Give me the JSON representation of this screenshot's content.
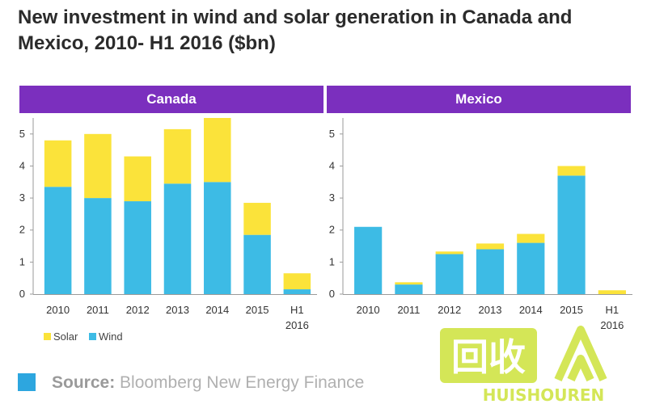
{
  "header": {
    "title": "New investment in wind and solar generation in Canada and Mexico, 2010- H1 2016 ($bn)"
  },
  "colors": {
    "solar": "#fbe33a",
    "wind": "#3dbbe5",
    "banner": "#7b2fbe",
    "source_box": "#2da6df"
  },
  "legend": {
    "solar_label": "Solar",
    "wind_label": "Wind"
  },
  "source": {
    "prefix": "Source:",
    "name": "Bloomberg New Energy Finance"
  },
  "watermark": {
    "text": "HUISHOUREN",
    "glyph": "回收"
  },
  "chart_data": [
    {
      "type": "bar",
      "stacked": true,
      "title": "Canada",
      "categories": [
        "2010",
        "2011",
        "2012",
        "2013",
        "2014",
        "2015",
        "H1 2016"
      ],
      "series": [
        {
          "name": "Wind",
          "values": [
            3.35,
            3.0,
            2.9,
            3.45,
            3.5,
            1.85,
            0.15
          ]
        },
        {
          "name": "Solar",
          "values": [
            1.45,
            2.0,
            1.4,
            1.7,
            2.0,
            1.0,
            0.5
          ]
        }
      ],
      "yticks": [
        0,
        1,
        2,
        3,
        4,
        5
      ],
      "ylim": [
        0,
        5.5
      ]
    },
    {
      "type": "bar",
      "stacked": true,
      "title": "Mexico",
      "categories": [
        "2010",
        "2011",
        "2012",
        "2013",
        "2014",
        "2015",
        "H1 2016"
      ],
      "series": [
        {
          "name": "Wind",
          "values": [
            2.1,
            0.3,
            1.25,
            1.4,
            1.6,
            3.7,
            0.0
          ]
        },
        {
          "name": "Solar",
          "values": [
            0.0,
            0.07,
            0.08,
            0.18,
            0.28,
            0.3,
            0.12
          ]
        }
      ],
      "yticks": [
        0,
        1,
        2,
        3,
        4,
        5
      ],
      "ylim": [
        0,
        5.5
      ]
    }
  ]
}
